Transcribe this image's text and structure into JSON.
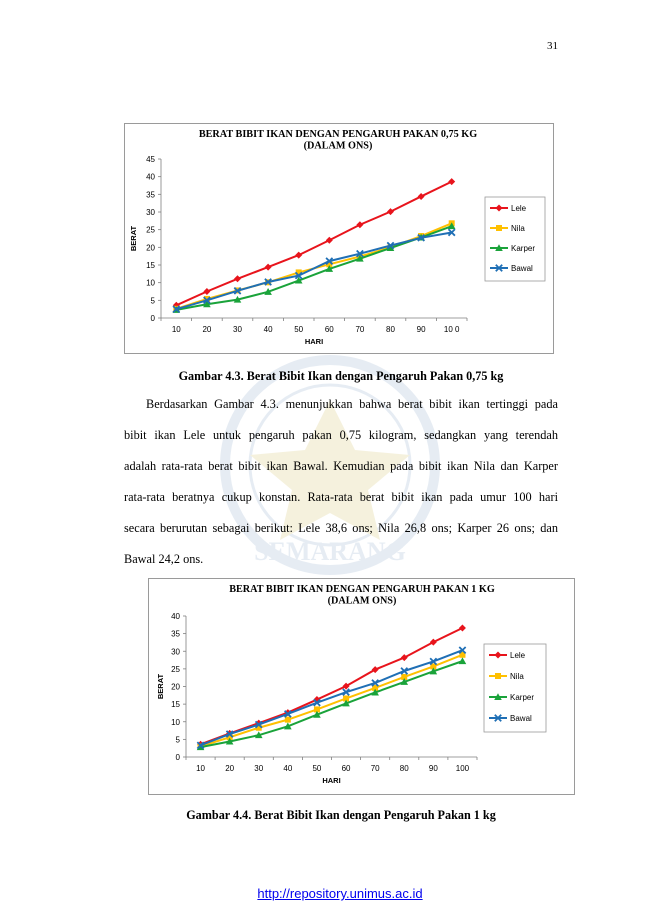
{
  "page_number": "31",
  "paragraph": {
    "lines": [
      "Berdasarkan Gambar 4.3. menunjukkan bahwa berat bibit ikan tertinggi pada",
      "bibit ikan Lele untuk pengaruh pakan 0,75 kilogram, sedangkan yang terendah",
      "adalah rata-rata berat bibit ikan Bawal. Kemudian pada bibit ikan Nila dan Karper",
      "rata-rata beratnya cukup konstan. Rata-rata berat bibit ikan pada umur 100 hari",
      "secara berurutan sebagai berikut: Lele 38,6 ons; Nila 26,8 ons; Karper 26 ons; dan",
      "Bawal 24,2 ons."
    ]
  },
  "captions": {
    "figure1": "Gambar 4.3. Berat Bibit Ikan dengan Pengaruh Pakan 0,75 kg",
    "figure2": "Gambar 4.4. Berat Bibit Ikan dengan Pengaruh Pakan 1 kg"
  },
  "footer": {
    "link": "http://repository.unimus.ac.id"
  },
  "watermark": {
    "text": "SEMARANG"
  },
  "chart_data": [
    {
      "type": "line",
      "title": [
        "BERAT BIBIT IKAN DENGAN PENGARUH PAKAN 0,75 KG",
        "(DALAM ONS)"
      ],
      "xlabel": "HARI",
      "ylabel": "BERAT",
      "x": [
        "10",
        "20",
        "30",
        "40",
        "50",
        "60",
        "70",
        "80",
        "90",
        "10 0"
      ],
      "ylim": [
        0,
        45
      ],
      "yticks": [
        0,
        5,
        10,
        15,
        20,
        25,
        30,
        35,
        40,
        45
      ],
      "grid": false,
      "legend": "right",
      "series": [
        {
          "name": "Lele",
          "color": "#e8141c",
          "marker": "diamond",
          "values": [
            3.6,
            7.5,
            11.1,
            14.4,
            17.8,
            22.0,
            26.4,
            30.1,
            34.4,
            38.6
          ]
        },
        {
          "name": "Nila",
          "color": "#ffc000",
          "marker": "square",
          "values": [
            2.6,
            5.4,
            7.8,
            10.1,
            12.9,
            15.2,
            17.4,
            20.0,
            23.2,
            26.8
          ]
        },
        {
          "name": "Karper",
          "color": "#1aa33a",
          "marker": "triangle",
          "values": [
            2.3,
            3.9,
            5.2,
            7.4,
            10.6,
            13.9,
            16.8,
            19.8,
            22.8,
            26.0
          ]
        },
        {
          "name": "Bawal",
          "color": "#1f6fb5",
          "marker": "x",
          "values": [
            2.5,
            5.0,
            7.7,
            10.2,
            12.0,
            16.1,
            18.2,
            20.5,
            22.7,
            24.2
          ]
        }
      ]
    },
    {
      "type": "line",
      "title": [
        "BERAT BIBIT IKAN DENGAN PENGARUH PAKAN 1 KG",
        "(DALAM ONS)"
      ],
      "xlabel": "HARI",
      "ylabel": "BERAT",
      "x": [
        "10",
        "20",
        "30",
        "40",
        "50",
        "60",
        "70",
        "80",
        "90",
        "100"
      ],
      "ylim": [
        0,
        40
      ],
      "yticks": [
        0,
        5,
        10,
        15,
        20,
        25,
        30,
        35,
        40
      ],
      "grid": false,
      "legend": "right",
      "series": [
        {
          "name": "Lele",
          "color": "#e8141c",
          "marker": "diamond",
          "values": [
            3.6,
            6.7,
            9.6,
            12.6,
            16.3,
            20.1,
            24.8,
            28.2,
            32.6,
            36.6
          ]
        },
        {
          "name": "Nila",
          "color": "#ffc000",
          "marker": "square",
          "values": [
            3.0,
            5.6,
            8.3,
            10.6,
            13.5,
            16.6,
            19.6,
            22.7,
            25.7,
            29.0
          ]
        },
        {
          "name": "Karper",
          "color": "#1aa33a",
          "marker": "triangle",
          "values": [
            2.8,
            4.4,
            6.2,
            8.7,
            12.0,
            15.2,
            18.3,
            21.3,
            24.3,
            27.2
          ]
        },
        {
          "name": "Bawal",
          "color": "#1f6fb5",
          "marker": "x",
          "values": [
            3.3,
            6.5,
            9.2,
            12.2,
            15.4,
            18.4,
            21.0,
            24.4,
            27.1,
            30.3
          ]
        }
      ]
    }
  ]
}
